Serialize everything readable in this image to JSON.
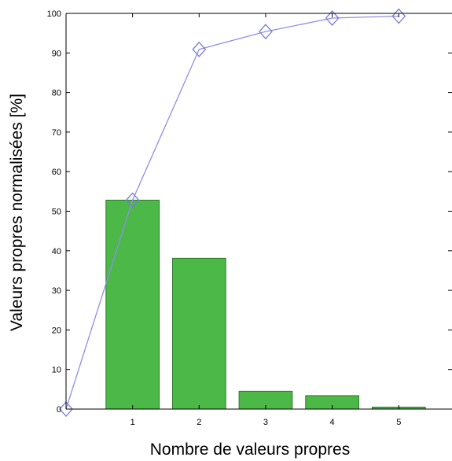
{
  "chart_data": {
    "type": "bar",
    "xlabel": "Nombre de valeurs propres",
    "ylabel": "Valeurs propres normalisées [%]",
    "xlim": [
      0,
      5.8
    ],
    "ylim": [
      0,
      100
    ],
    "xticks": [
      1,
      2,
      3,
      4,
      5
    ],
    "yticks": [
      0,
      10,
      20,
      30,
      40,
      50,
      60,
      70,
      80,
      90,
      100
    ],
    "grid": false,
    "series": [
      {
        "type": "bar",
        "color": "#4bb848",
        "x": [
          1,
          2,
          3,
          4,
          5
        ],
        "values": [
          52.8,
          38.1,
          4.5,
          3.4,
          0.5
        ]
      },
      {
        "type": "line",
        "marker": "diamond",
        "color": "#8f8fe8",
        "x": [
          0,
          1,
          2,
          3,
          4,
          5
        ],
        "values": [
          0,
          52.8,
          90.9,
          95.4,
          98.8,
          99.3
        ]
      }
    ]
  }
}
